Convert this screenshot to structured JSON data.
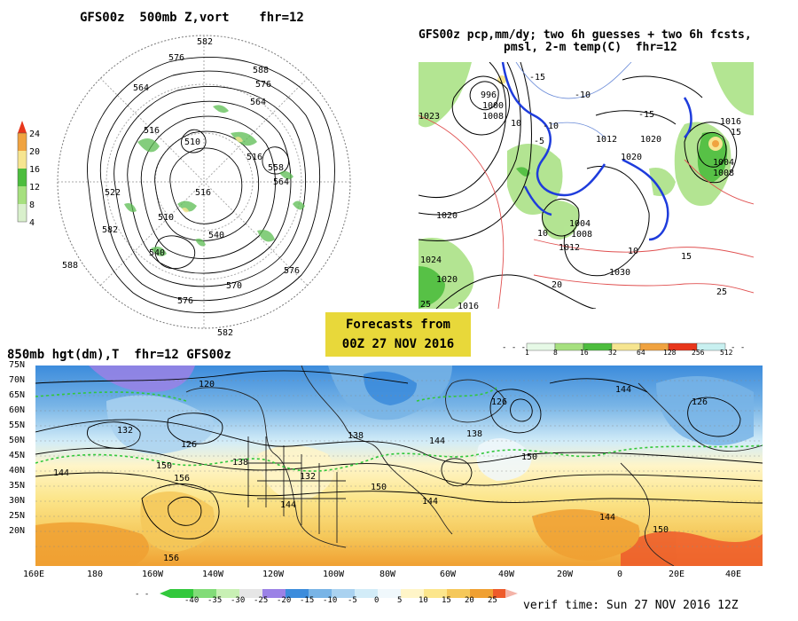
{
  "panel_500mb": {
    "title": "GFS00z  500mb Z,vort    fhr=12",
    "contour_labels": [
      "582",
      "576",
      "570",
      "564",
      "558",
      "552",
      "546",
      "540",
      "534",
      "528",
      "522",
      "516",
      "510",
      "504",
      "588"
    ],
    "vort_scale": [
      "24",
      "20",
      "16",
      "12",
      "8",
      "4"
    ],
    "vort_colors": [
      "#e8361b",
      "#f0a340",
      "#f6e590",
      "#a6e07f",
      "#4dbd3e",
      "#d9f0cc"
    ]
  },
  "panel_precip": {
    "title_line1": "GFS00z pcp,mm/dy; two 6h guesses + two 6h fcsts,",
    "title_line2": "pmsl, 2-m temp(C)  fhr=12",
    "pressure_labels": [
      "1020",
      "1024",
      "1012",
      "1008",
      "1004",
      "1016",
      "1028",
      "1032",
      "996",
      "1000"
    ],
    "temp_labels": [
      "-15",
      "-10",
      "-5",
      "0",
      "5",
      "10",
      "15",
      "20",
      "25"
    ],
    "scale_labels": [
      "1",
      "8",
      "16",
      "32",
      "64",
      "128",
      "256",
      "512"
    ],
    "scale_colors": [
      "#e6f9e6",
      "#a6e07f",
      "#4dbd3e",
      "#f6e590",
      "#f0a340",
      "#e8361b",
      "#c8f0f0"
    ]
  },
  "banner": {
    "line1": "Forecasts from",
    "line2": "00Z 27 NOV 2016"
  },
  "panel_850mb": {
    "title": "850mb hgt(dm),T  fhr=12 GFS00z",
    "lat_labels": [
      "75N",
      "70N",
      "65N",
      "60N",
      "55N",
      "50N",
      "45N",
      "40N",
      "35N",
      "30N",
      "25N",
      "20N"
    ],
    "lon_labels": [
      "160E",
      "180",
      "160W",
      "140W",
      "120W",
      "100W",
      "80W",
      "60W",
      "40W",
      "20W",
      "0",
      "20E",
      "40E"
    ],
    "height_labels": [
      "120",
      "126",
      "132",
      "138",
      "144",
      "150",
      "156"
    ],
    "temp_scale_labels": [
      "-40",
      "-35",
      "-30",
      "-25",
      "-20",
      "-15",
      "-10",
      "-5",
      "0",
      "5",
      "10",
      "15",
      "20",
      "25"
    ],
    "temp_scale_colors": [
      "#32c83c",
      "#82dc78",
      "#c8f0b4",
      "#e6e6e6",
      "#9b82e6",
      "#3c8cdc",
      "#78b4e6",
      "#aad2f0",
      "#d2ecf8",
      "#f0f8fc",
      "#fff5c8",
      "#fce68c",
      "#f5c85a",
      "#f0a032",
      "#ee5a2a"
    ]
  },
  "verif_time": "verif time: Sun 27 NOV 2016 12Z"
}
